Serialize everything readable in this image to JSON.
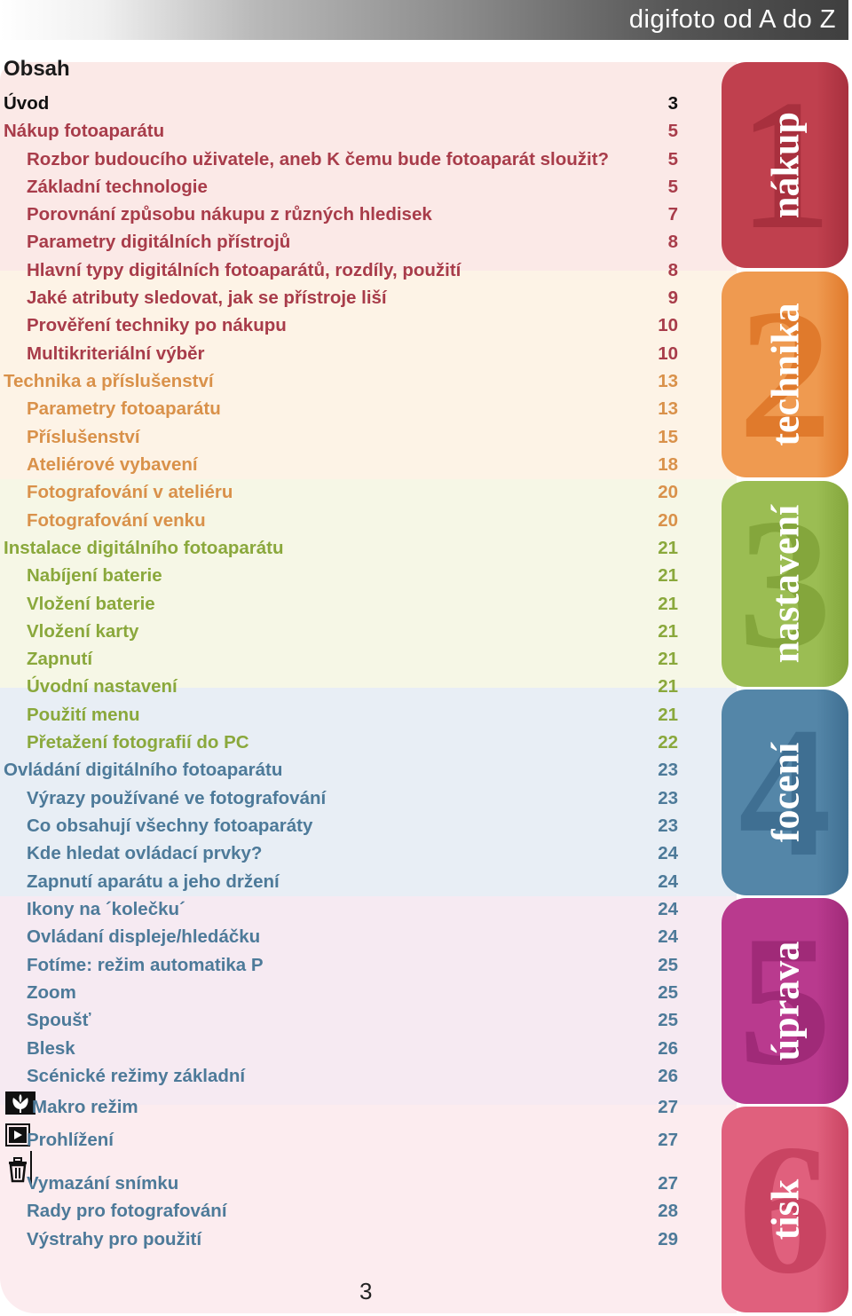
{
  "header": {
    "title": "digifoto od A do Z"
  },
  "toc": {
    "title": "Obsah",
    "items": [
      {
        "label": "Úvod",
        "page": "3",
        "level": 0,
        "color": "#111111"
      },
      {
        "label": "Nákup fotoaparátu",
        "page": "5",
        "level": 0,
        "color": "#a83c4a"
      },
      {
        "label": "Rozbor budoucího uživatele, aneb K čemu bude fotoaparát sloužit?",
        "page": "5",
        "level": 1,
        "color": "#a83c4a"
      },
      {
        "label": "Základní technologie",
        "page": "5",
        "level": 1,
        "color": "#a83c4a"
      },
      {
        "label": "Porovnání způsobu nákupu z různých hledisek",
        "page": "7",
        "level": 1,
        "color": "#a83c4a"
      },
      {
        "label": "Parametry digitálních přístrojů",
        "page": "8",
        "level": 1,
        "color": "#a83c4a"
      },
      {
        "label": "Hlavní typy digitálních fotoaparátů, rozdíly, použití",
        "page": "8",
        "level": 1,
        "color": "#a83c4a"
      },
      {
        "label": "Jaké atributy sledovat, jak se přístroje liší",
        "page": "9",
        "level": 1,
        "color": "#a83c4a"
      },
      {
        "label": "Prověření techniky po nákupu",
        "page": "10",
        "level": 1,
        "color": "#a83c4a"
      },
      {
        "label": "Multikriteriální výběr",
        "page": "10",
        "level": 1,
        "color": "#a83c4a"
      },
      {
        "label": "Technika a příslušenství",
        "page": "13",
        "level": 0,
        "color": "#d9914a"
      },
      {
        "label": "Parametry fotoaparátu",
        "page": "13",
        "level": 1,
        "color": "#d9914a"
      },
      {
        "label": "Příslušenství",
        "page": "15",
        "level": 1,
        "color": "#d9914a"
      },
      {
        "label": "Ateliérové vybavení",
        "page": "18",
        "level": 1,
        "color": "#d9914a"
      },
      {
        "label": "Fotografování v ateliéru",
        "page": "20",
        "level": 1,
        "color": "#d9914a"
      },
      {
        "label": "Fotografování venku",
        "page": "20",
        "level": 1,
        "color": "#d9914a"
      },
      {
        "label": "Instalace digitálního fotoaparátu",
        "page": "21",
        "level": 0,
        "color": "#8aa83c"
      },
      {
        "label": "Nabíjení baterie",
        "page": "21",
        "level": 1,
        "color": "#8aa83c"
      },
      {
        "label": "Vložení baterie",
        "page": "21",
        "level": 1,
        "color": "#8aa83c"
      },
      {
        "label": "Vložení karty",
        "page": "21",
        "level": 1,
        "color": "#8aa83c"
      },
      {
        "label": "Zapnutí",
        "page": "21",
        "level": 1,
        "color": "#8aa83c"
      },
      {
        "label": "Úvodní nastavení",
        "page": "21",
        "level": 1,
        "color": "#8aa83c"
      },
      {
        "label": "Použití menu",
        "page": "21",
        "level": 1,
        "color": "#8aa83c"
      },
      {
        "label": "Přetažení fotografií do PC",
        "page": "22",
        "level": 1,
        "color": "#8aa83c"
      },
      {
        "label": "Ovládání digitálního fotoaparátu",
        "page": "23",
        "level": 0,
        "color": "#4d7a99"
      },
      {
        "label": "Výrazy používané ve fotografování",
        "page": "23",
        "level": 1,
        "color": "#4d7a99"
      },
      {
        "label": "Co obsahují všechny fotoaparáty",
        "page": "23",
        "level": 1,
        "color": "#4d7a99"
      },
      {
        "label": "Kde hledat ovládací prvky?",
        "page": "24",
        "level": 1,
        "color": "#4d7a99"
      },
      {
        "label": "Zapnutí aparátu a jeho držení",
        "page": "24",
        "level": 1,
        "color": "#4d7a99"
      },
      {
        "label": "Ikony na ´kolečku´",
        "page": "24",
        "level": 1,
        "color": "#4d7a99"
      },
      {
        "label": "Ovládaní displeje/hledáčku",
        "page": "24",
        "level": 1,
        "color": "#4d7a99"
      },
      {
        "label": "Fotíme: režim automatika P",
        "page": "25",
        "level": 1,
        "color": "#4d7a99"
      },
      {
        "label": "Zoom",
        "page": "25",
        "level": 1,
        "color": "#4d7a99"
      },
      {
        "label": "Spoušť",
        "page": "25",
        "level": 1,
        "color": "#4d7a99"
      },
      {
        "label": "Blesk",
        "page": "26",
        "level": 1,
        "color": "#4d7a99"
      },
      {
        "label": "Scénické režimy základní",
        "page": "26",
        "level": 1,
        "color": "#4d7a99"
      },
      {
        "label": "Makro režim",
        "page": "27",
        "level": 1,
        "color": "#4d7a99",
        "icon": "macro-flower-icon"
      },
      {
        "label": "Prohlížení",
        "page": "27",
        "level": 1,
        "color": "#4d7a99",
        "icon": "playback-icon"
      },
      {
        "label": "Vymazání snímku",
        "page": "27",
        "level": 1,
        "color": "#4d7a99",
        "icon": "trash-icon"
      },
      {
        "label": "Rady pro fotografování",
        "page": "28",
        "level": 1,
        "color": "#4d7a99"
      },
      {
        "label": "Výstrahy pro použití",
        "page": "29",
        "level": 1,
        "color": "#4d7a99"
      }
    ]
  },
  "tabs": [
    {
      "number": "1",
      "word": "nákup",
      "color": "#c0404e",
      "num_color": "#a8303e"
    },
    {
      "number": "2",
      "word": "technika",
      "color": "#ef9a50",
      "num_color": "#e07a2c"
    },
    {
      "number": "3",
      "word": "nastavení",
      "color": "#9bbd53",
      "num_color": "#84a63c"
    },
    {
      "number": "4",
      "word": "focení",
      "color": "#5486a8",
      "num_color": "#3f6f92"
    },
    {
      "number": "5",
      "word": "úprava",
      "color": "#b93a8e",
      "num_color": "#a02a78"
    },
    {
      "number": "6",
      "word": "tisk",
      "color": "#e0607d",
      "num_color": "#c94462"
    }
  ],
  "footer": {
    "page_number": "3"
  }
}
